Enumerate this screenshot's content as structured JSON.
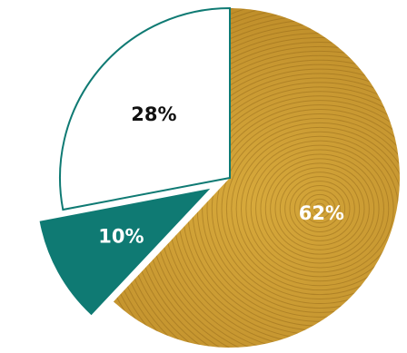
{
  "chart_data": {
    "type": "pie",
    "slices": [
      {
        "label": "62%",
        "value": 62,
        "fill": "#c8982f",
        "pattern": "fingerprint-wood-texture",
        "text_color": "#ffffff",
        "outline": "none",
        "exploded": false
      },
      {
        "label": "10%",
        "value": 10,
        "fill": "#0f7a73",
        "text_color": "#ffffff",
        "outline": "#0f7a73",
        "exploded": true
      },
      {
        "label": "28%",
        "value": 28,
        "fill": "#ffffff",
        "text_color": "#111111",
        "outline": "#0f7a73",
        "exploded": false
      }
    ],
    "start_angle_deg": 0,
    "direction": "clockwise",
    "legend": "none",
    "title": ""
  }
}
